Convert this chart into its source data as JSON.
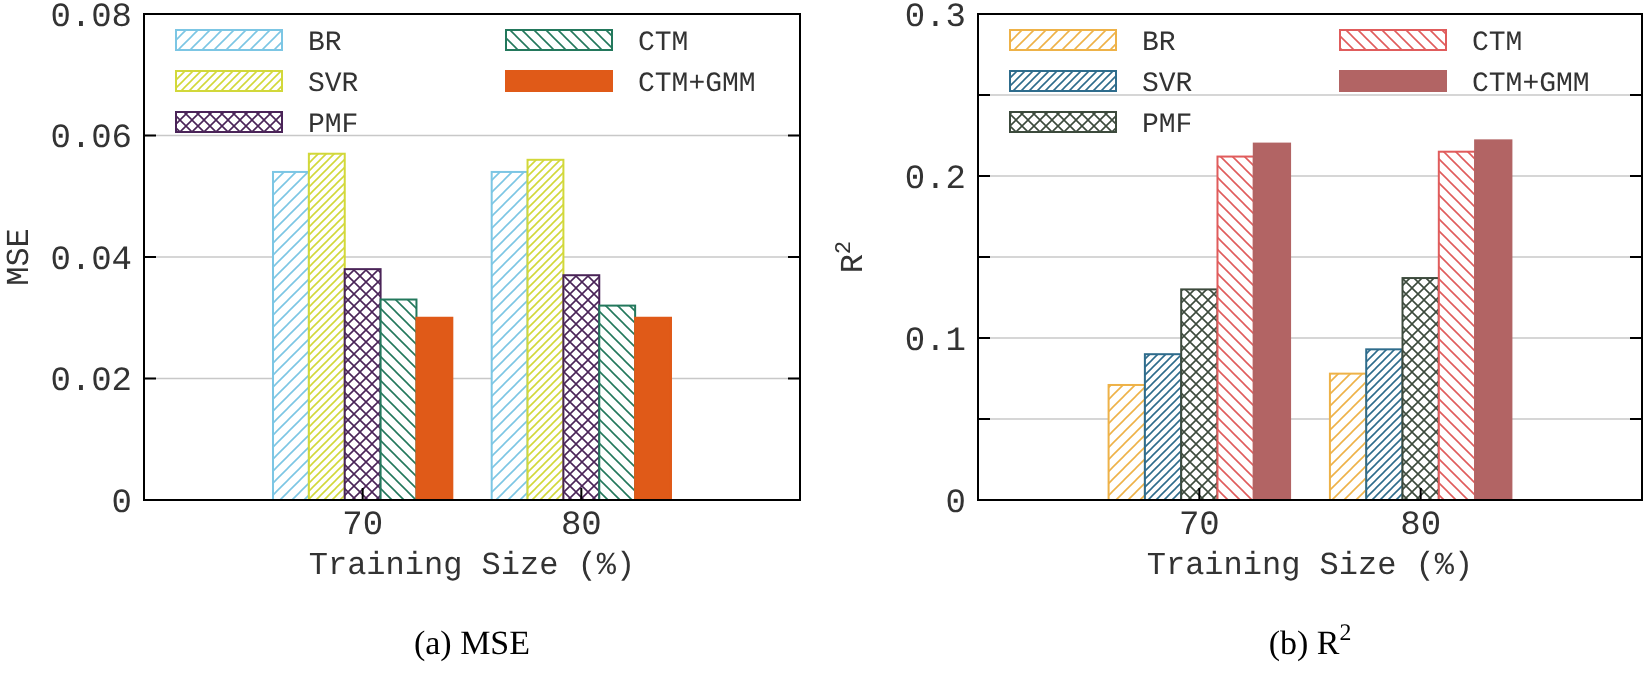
{
  "chart_data": [
    {
      "type": "bar",
      "title": "(a) MSE",
      "xlabel": "Training Size (%)",
      "ylabel": "MSE",
      "categories": [
        "70",
        "80"
      ],
      "series": [
        {
          "name": "BR",
          "color": "#7cc6e4",
          "values": [
            0.054,
            0.054
          ]
        },
        {
          "name": "SVR",
          "color": "#d2d83a",
          "values": [
            0.057,
            0.056
          ]
        },
        {
          "name": "PMF",
          "color": "#4a2458",
          "values": [
            0.038,
            0.037
          ]
        },
        {
          "name": "CTM",
          "color": "#23785c",
          "values": [
            0.033,
            0.032
          ]
        },
        {
          "name": "CTM+GMM",
          "color": "#e05a18",
          "values": [
            0.03,
            0.03
          ]
        }
      ],
      "ylim": [
        0,
        0.08
      ],
      "yticks": [
        0,
        0.02,
        0.04,
        0.06,
        0.08
      ],
      "grid": "y",
      "legend": "top left"
    },
    {
      "type": "bar",
      "title": "(b) R$^{2}$",
      "xlabel": "Training Size (%)",
      "ylabel": "R$^{2}$",
      "categories": [
        "70",
        "80"
      ],
      "series": [
        {
          "name": "BR",
          "color": "#eeb248",
          "values": [
            0.071,
            0.078
          ]
        },
        {
          "name": "SVR",
          "color": "#2e6c8c",
          "values": [
            0.09,
            0.093
          ]
        },
        {
          "name": "PMF",
          "color": "#3c4a3c",
          "values": [
            0.13,
            0.137
          ]
        },
        {
          "name": "CTM",
          "color": "#e05c5c",
          "values": [
            0.212,
            0.215
          ]
        },
        {
          "name": "CTM+GMM",
          "color": "#b26464",
          "values": [
            0.22,
            0.222
          ]
        }
      ],
      "ylim": [
        0,
        0.3
      ],
      "yticks": [
        0,
        {
          "value": 0.05,
          "label": null
        },
        0.1,
        {
          "value": 0.15,
          "label": null
        },
        0.2,
        {
          "value": 0.25,
          "label": null
        },
        0.3
      ],
      "grid": "y",
      "legend": "top left"
    }
  ]
}
